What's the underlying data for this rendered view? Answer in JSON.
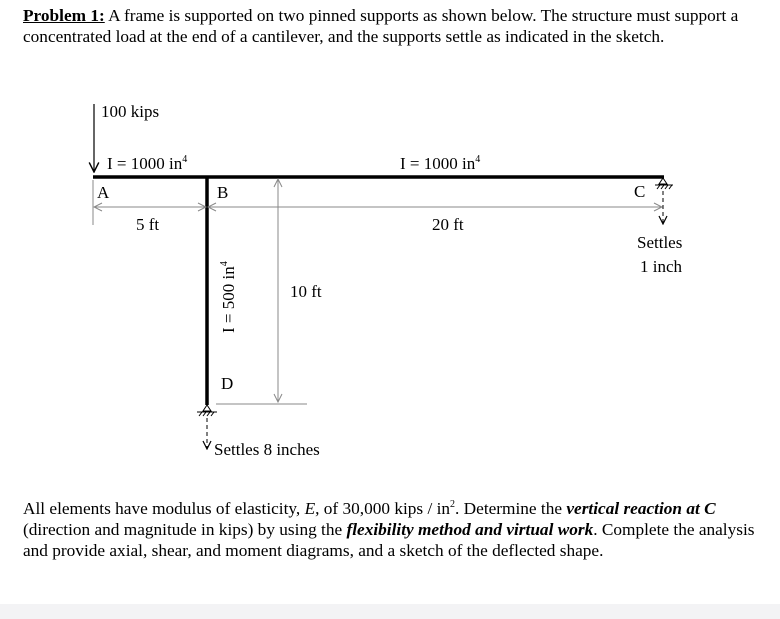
{
  "problem": {
    "label": "Problem 1:",
    "statement": " A frame is supported on two pinned supports as shown below.  The structure must support a concentrated load at the end of a cantilever, and the supports settle as indicated in the sketch."
  },
  "diagram": {
    "load": "100 kips",
    "inertia_left": "I = 1000 in",
    "inertia_right": "I = 1000 in",
    "inertia_column": "I = 500 in",
    "exponent": "4",
    "node_a": "A",
    "node_b": "B",
    "node_c": "C",
    "node_d": "D",
    "dim_ab": "5 ft",
    "dim_bc": "20 ft",
    "dim_bd": "10 ft",
    "settle_c_line1": "Settles",
    "settle_c_line2": "1 inch",
    "settle_d": "Settles 8 inches"
  },
  "instructions": {
    "t1": "All elements have modulus of elasticity, ",
    "e": "E",
    "t2": ", of 30,000 kips / in",
    "sup": "2",
    "t3": ".  Determine the ",
    "bold1": "vertical reaction at C",
    "t4": " (direction and magnitude in kips) by using the ",
    "bold2": "flexibility method and virtual work",
    "t5": ".  Complete the analysis and provide axial, shear, and moment diagrams, and a sketch of the deflected shape."
  }
}
